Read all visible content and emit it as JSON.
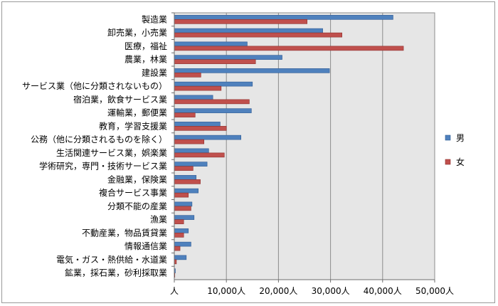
{
  "chart_data": {
    "type": "bar",
    "orientation": "horizontal",
    "categories": [
      "製造業",
      "卸売業，小売業",
      "医療，福祉",
      "農業，林業",
      "建設業",
      "サービス業（他に分類されないもの）",
      "宿泊業，飲食サービス業",
      "運輸業，郵便業",
      "教育，学習支援業",
      "公務（他に分類されるものを除く）",
      "生活関連サービス業，娯楽業",
      "学術研究，専門・技術サービス業",
      "金融業，保険業",
      "複合サービス事業",
      "分類不能の産業",
      "漁業",
      "不動産業，物品賃貸業",
      "情報通信業",
      "電気・ガス・熱供給・水道業",
      "鉱業，採石業，砂利採取業"
    ],
    "series": [
      {
        "name": "男",
        "color": "#4f81bd",
        "values": [
          42000,
          28500,
          14000,
          20700,
          29800,
          15000,
          7400,
          14800,
          8800,
          12800,
          6600,
          6300,
          4200,
          4600,
          3400,
          3800,
          2700,
          3200,
          2300,
          200
        ]
      },
      {
        "name": "女",
        "color": "#c0504d",
        "values": [
          25500,
          32200,
          44000,
          15600,
          5100,
          9000,
          14400,
          4000,
          10000,
          5700,
          9600,
          3600,
          5000,
          2700,
          3200,
          1800,
          1800,
          1100,
          400,
          100
        ]
      }
    ],
    "xlim": [
      0,
      50000
    ],
    "ticks": [
      0,
      10000,
      20000,
      30000,
      40000,
      50000
    ],
    "tick_labels": [
      "人",
      "10,000人",
      "20,000人",
      "30,000人",
      "40,000人",
      "50,000人"
    ],
    "legend_position": "right",
    "grid": true,
    "plot_background": "#e6e6e6"
  }
}
